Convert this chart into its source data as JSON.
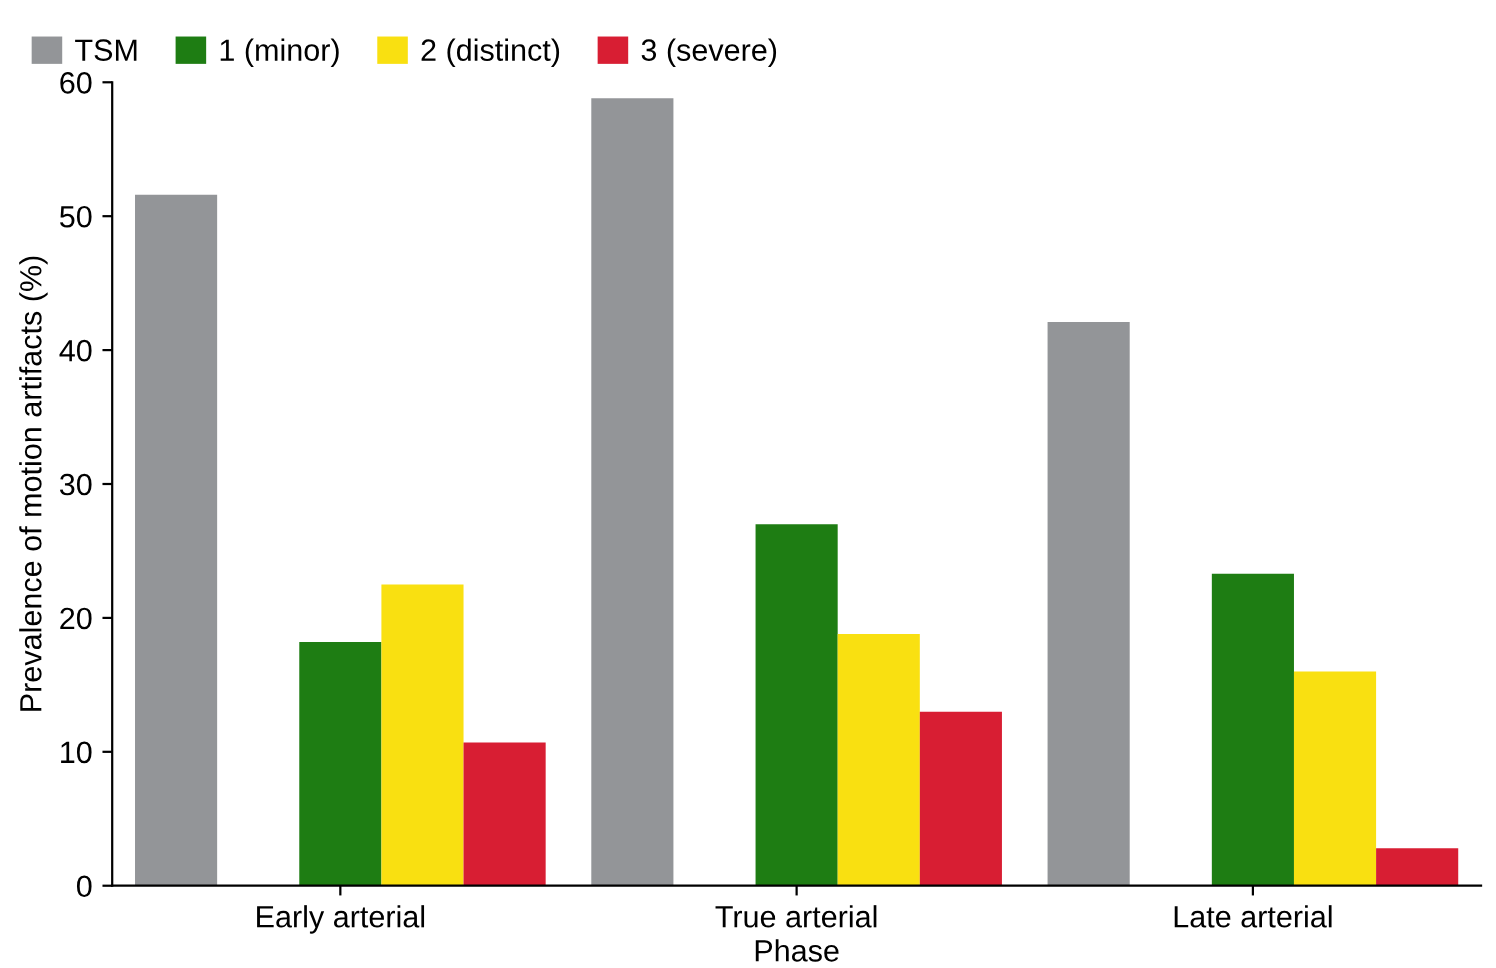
{
  "chart_data": {
    "type": "bar",
    "xlabel": "Phase",
    "ylabel": "Prevalence of motion artifacts (%)",
    "categories": [
      "Early arterial",
      "True arterial",
      "Late arterial"
    ],
    "series": [
      {
        "name": "TSM",
        "color": "#939598",
        "values": [
          51.6,
          58.8,
          42.1
        ]
      },
      {
        "name": "1 (minor)",
        "color": "#1e7d13",
        "values": [
          18.2,
          27.0,
          23.3
        ]
      },
      {
        "name": "2 (distinct)",
        "color": "#f9e011",
        "values": [
          22.5,
          18.8,
          16.0
        ]
      },
      {
        "name": "3 (severe)",
        "color": "#d81e33",
        "values": [
          10.7,
          13.0,
          2.8
        ]
      }
    ],
    "ylim": [
      0,
      60
    ],
    "yticks": [
      0,
      10,
      20,
      30,
      40,
      50,
      60
    ],
    "grid": false,
    "legend": "top left"
  }
}
